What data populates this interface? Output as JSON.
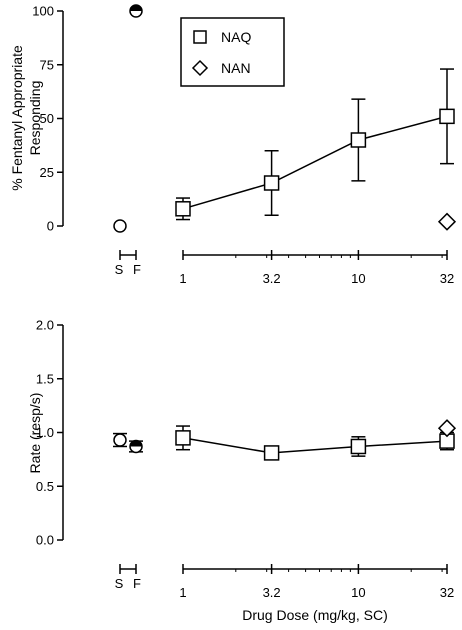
{
  "chart_data": [
    {
      "type": "line",
      "ylabel_lines": [
        "% Fentanyl Appropriate",
        "Responding"
      ],
      "xlabel": "",
      "ylim": [
        0,
        100
      ],
      "yticks": [
        0,
        25,
        50,
        75,
        100
      ],
      "x_scale": "log",
      "x_ticks": [
        1,
        3.2,
        10,
        32
      ],
      "x_tick_labels": [
        "1",
        "3.2",
        "10",
        "32"
      ],
      "controls": {
        "labels": [
          "S",
          "F"
        ],
        "points": [
          {
            "label": "S",
            "y": 0,
            "marker": "circle-open"
          },
          {
            "label": "F",
            "y": 100,
            "marker": "circle-half"
          }
        ]
      },
      "legend": {
        "placement": "top-left",
        "entries": [
          {
            "label": "NAQ",
            "marker": "square"
          },
          {
            "label": "NAN",
            "marker": "diamond"
          }
        ]
      },
      "series": [
        {
          "name": "NAQ",
          "marker": "square",
          "connected": true,
          "points": [
            {
              "x": 1,
              "y": 8,
              "err": 5
            },
            {
              "x": 3.2,
              "y": 20,
              "err": 15
            },
            {
              "x": 10,
              "y": 40,
              "err": 19
            },
            {
              "x": 32,
              "y": 51,
              "err": 22
            }
          ]
        },
        {
          "name": "NAN",
          "marker": "diamond",
          "connected": false,
          "points": [
            {
              "x": 32,
              "y": 2,
              "err": 0
            }
          ]
        }
      ]
    },
    {
      "type": "line",
      "ylabel": "Rate (resp/s)",
      "xlabel": "Drug Dose (mg/kg, SC)",
      "ylim": [
        0,
        2
      ],
      "yticks": [
        0,
        0.5,
        1,
        1.5,
        2
      ],
      "ytick_labels": [
        "0.0",
        "0.5",
        "1.0",
        "1.5",
        "2.0"
      ],
      "x_scale": "log",
      "x_ticks": [
        1,
        3.2,
        10,
        32
      ],
      "x_tick_labels": [
        "1",
        "3.2",
        "10",
        "32"
      ],
      "controls": {
        "labels": [
          "S",
          "F"
        ],
        "points": [
          {
            "label": "S",
            "y": 0.93,
            "err": 0.06,
            "marker": "circle-open"
          },
          {
            "label": "F",
            "y": 0.87,
            "err": 0.05,
            "marker": "circle-half"
          }
        ]
      },
      "series": [
        {
          "name": "NAQ",
          "marker": "square",
          "connected": true,
          "points": [
            {
              "x": 1,
              "y": 0.95,
              "err": 0.11
            },
            {
              "x": 3.2,
              "y": 0.81,
              "err": 0.03
            },
            {
              "x": 10,
              "y": 0.87,
              "err": 0.09
            },
            {
              "x": 32,
              "y": 0.92,
              "err": 0.08
            }
          ]
        },
        {
          "name": "NAN",
          "marker": "diamond",
          "connected": false,
          "points": [
            {
              "x": 32,
              "y": 1.04,
              "err": 0
            }
          ]
        }
      ]
    }
  ]
}
